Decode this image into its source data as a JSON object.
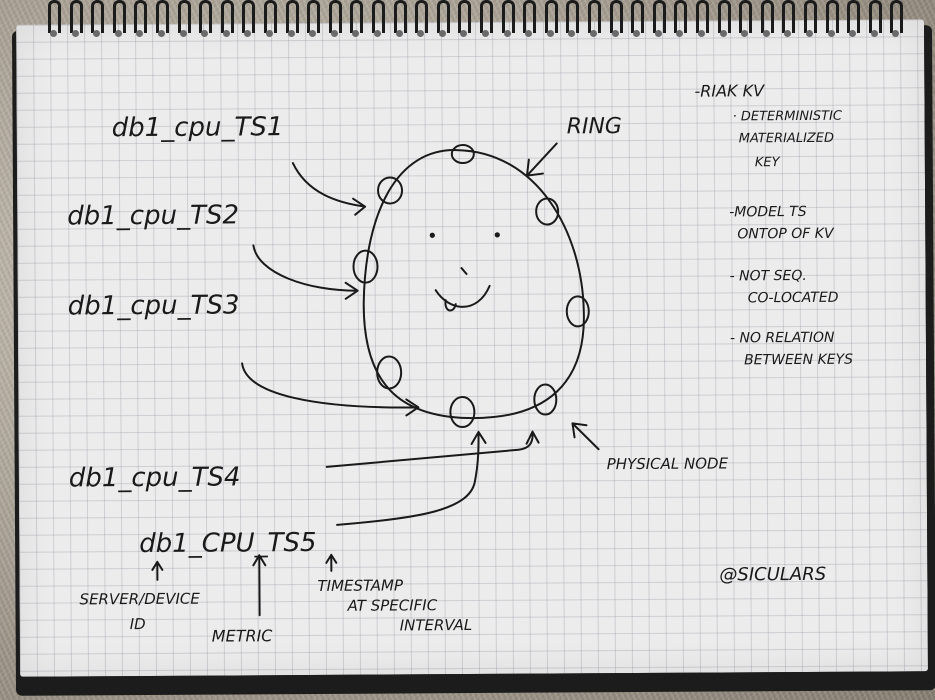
{
  "notes": {
    "labels": {
      "ts1": "db1_cpu_TS1",
      "ts2": "db1_cpu_TS2",
      "ts3": "db1_cpu_TS3",
      "ts4": "db1_cpu_TS4",
      "ts5": "db1_CPU_TS5"
    },
    "ring_label": "RING",
    "physical_node_label": "PHYSICAL NODE",
    "breakdown": {
      "server_line1": "SERVER/DEVICE",
      "server_line2": "ID",
      "metric": "METRIC",
      "ts_line1": "TIMESTAMP",
      "ts_line2": "AT SPECIFIC",
      "ts_line3": "INTERVAL"
    },
    "sidebar": {
      "title": "-RIAK KV",
      "item1_line1": "· DETERMINISTIC",
      "item1_line2": "MATERIALIZED",
      "item1_line3": "KEY",
      "item2_line1": "-MODEL TS",
      "item2_line2": "ONTOP OF KV",
      "item3_line1": "- NOT SEQ.",
      "item3_line2": "CO-LOCATED",
      "item4_line1": "- NO RELATION",
      "item4_line2": "BETWEEN KEYS"
    },
    "signature": "@SICULARS"
  },
  "colors": {
    "ink": "#1a1a1a",
    "paper": "#ececec",
    "grid": "#9696a5"
  }
}
